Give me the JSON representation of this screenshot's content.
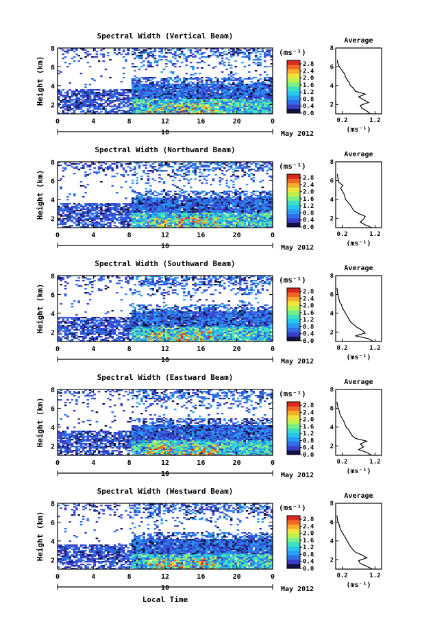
{
  "chart_data": {
    "type": "heatmap",
    "month_label": "May 2012",
    "date_label": "10",
    "x_tick_labels": [
      "0",
      "4",
      "8",
      "12",
      "16",
      "20",
      "0"
    ],
    "xlim": [
      0,
      24
    ],
    "xlabel_main": "Local Time",
    "ylabel_main": "Height (km)",
    "y_tick_labels": [
      "2",
      "4",
      "6",
      "8"
    ],
    "ylim": [
      1,
      8
    ],
    "colorbar": {
      "unit": "(ms⁻¹)",
      "tick_labels": [
        "0.0",
        "0.4",
        "0.8",
        "1.2",
        "1.6",
        "2.0",
        "2.4",
        "2.8"
      ],
      "range": [
        0,
        3
      ],
      "colors": [
        "#111144",
        "#3a3fc8",
        "#2f6fe8",
        "#2a9df2",
        "#27c5ea",
        "#3ee0c2",
        "#7aef86",
        "#bff04e",
        "#f0e43a",
        "#f7ad2c",
        "#f06a26",
        "#d82a20"
      ]
    },
    "profile": {
      "title": "Average",
      "xlabel": "(ms⁻¹)",
      "x_tick_labels": [
        "0.2",
        "1.2"
      ],
      "xlim": [
        0,
        1.4
      ],
      "y_tick_labels": [
        "2",
        "4",
        "6",
        "8"
      ],
      "ylim": [
        1,
        8
      ]
    },
    "panels": [
      {
        "title": "Spectral Width (Vertical Beam)",
        "profile_heights": [
          1.0,
          1.3,
          1.6,
          1.9,
          2.2,
          2.5,
          2.8,
          3.1,
          3.4,
          3.7,
          4.0,
          4.3,
          4.6,
          4.9,
          5.2,
          5.5,
          5.8,
          6.1,
          6.4,
          6.7
        ],
        "profile_values": [
          1.05,
          0.95,
          0.8,
          0.75,
          1.0,
          0.85,
          0.7,
          0.9,
          0.6,
          0.55,
          0.45,
          0.42,
          0.35,
          0.3,
          0.28,
          0.22,
          0.15,
          0.1,
          0.06,
          0.05
        ]
      },
      {
        "title": "Spectral Width (Northward Beam)",
        "profile_heights": [
          1.0,
          1.3,
          1.6,
          1.9,
          2.2,
          2.5,
          2.8,
          3.1,
          3.4,
          3.7,
          4.0,
          4.3,
          4.6,
          4.9,
          5.2,
          5.5,
          5.8,
          6.1,
          6.4,
          6.7
        ],
        "profile_values": [
          1.1,
          0.9,
          0.75,
          0.85,
          0.9,
          0.7,
          0.55,
          0.5,
          0.45,
          0.38,
          0.3,
          0.28,
          0.25,
          0.2,
          0.15,
          0.22,
          0.1,
          0.08,
          0.06,
          0.05
        ]
      },
      {
        "title": "Spectral Width (Southward Beam)",
        "profile_heights": [
          1.0,
          1.3,
          1.6,
          1.9,
          2.2,
          2.5,
          2.8,
          3.1,
          3.4,
          3.7,
          4.0,
          4.3,
          4.6,
          4.9,
          5.2,
          5.5,
          5.8,
          6.1,
          6.4,
          6.7
        ],
        "profile_values": [
          1.15,
          1.0,
          0.6,
          0.9,
          0.8,
          0.65,
          0.55,
          0.45,
          0.4,
          0.35,
          0.3,
          0.25,
          0.2,
          0.18,
          0.12,
          0.1,
          0.08,
          0.06,
          0.05,
          0.04
        ]
      },
      {
        "title": "Spectral Width (Eastward Beam)",
        "profile_heights": [
          1.0,
          1.3,
          1.6,
          1.9,
          2.2,
          2.5,
          2.8,
          3.1,
          3.4,
          3.7,
          4.0,
          4.3,
          4.6,
          4.9,
          5.2,
          5.5,
          5.8,
          6.1,
          6.4,
          6.7
        ],
        "profile_values": [
          1.1,
          0.95,
          0.7,
          0.85,
          0.75,
          0.95,
          0.6,
          0.5,
          0.45,
          0.4,
          0.32,
          0.28,
          0.25,
          0.2,
          0.15,
          0.12,
          0.1,
          0.07,
          0.05,
          0.04
        ]
      },
      {
        "title": "Spectral Width (Westward Beam)",
        "profile_heights": [
          1.0,
          1.3,
          1.6,
          1.9,
          2.2,
          2.5,
          2.8,
          3.1,
          3.4,
          3.7,
          4.0,
          4.3,
          4.6,
          4.9,
          5.2,
          5.5,
          5.8,
          6.1,
          6.4,
          6.7
        ],
        "profile_values": [
          1.12,
          0.95,
          0.75,
          0.7,
          0.95,
          0.8,
          0.6,
          0.52,
          0.45,
          0.4,
          0.35,
          0.3,
          0.25,
          0.2,
          0.15,
          0.12,
          0.1,
          0.06,
          0.05,
          0.04
        ]
      }
    ]
  }
}
